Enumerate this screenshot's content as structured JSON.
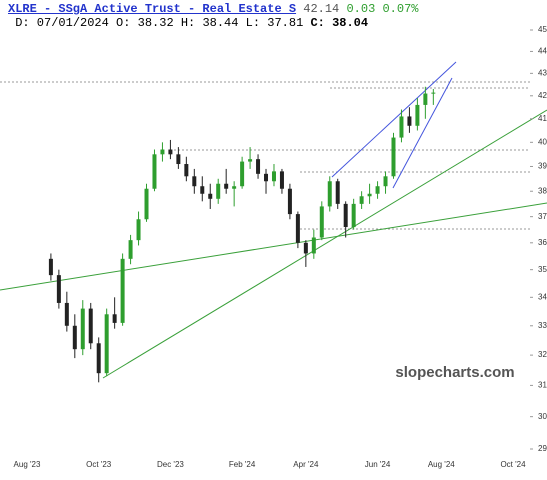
{
  "header": {
    "title": "XLRE - SSgA Active Trust - Real Estate S",
    "last": "42.14",
    "change": "0.03",
    "change_pct": "0.07%",
    "date": "D: 07/01/2024",
    "open": "O: 38.32",
    "high": "H: 38.44",
    "low": "L: 37.81",
    "close": "C: 38.04"
  },
  "watermark": "slopecharts.com",
  "chart_data": {
    "type": "candlestick",
    "yscale": "log",
    "up_color": "#2e9e2e",
    "down_color": "#222222",
    "categories": [
      "Aug '23",
      null,
      null,
      null,
      null,
      null,
      null,
      null,
      null,
      "Oct '23",
      null,
      null,
      null,
      null,
      null,
      null,
      null,
      null,
      "Dec '23",
      null,
      null,
      null,
      null,
      null,
      null,
      null,
      null,
      "Feb '24",
      null,
      null,
      null,
      null,
      null,
      null,
      null,
      "Apr '24",
      null,
      null,
      null,
      null,
      null,
      null,
      null,
      null,
      "Jun '24",
      null,
      null,
      null,
      null,
      null,
      null,
      null,
      "Aug '24",
      null,
      null,
      null,
      null,
      null,
      null,
      null,
      null,
      "Oct '24",
      null,
      null,
      null,
      null
    ],
    "open": [
      null,
      null,
      null,
      35.4,
      34.8,
      33.8,
      33.0,
      32.2,
      33.6,
      32.4,
      31.4,
      33.4,
      33.1,
      35.4,
      36.1,
      36.9,
      38.1,
      39.5,
      39.7,
      39.5,
      39.1,
      38.6,
      38.2,
      37.9,
      37.7,
      38.3,
      38.1,
      38.2,
      39.2,
      39.3,
      38.7,
      38.4,
      38.8,
      38.1,
      37.1,
      36.0,
      35.6,
      36.2,
      37.4,
      38.4,
      37.5,
      36.6,
      37.5,
      37.8,
      37.9,
      38.2,
      38.6,
      40.2,
      41.1,
      40.7,
      41.6,
      42.1,
      null,
      null,
      null,
      null,
      null,
      null,
      null,
      null,
      null,
      null,
      null,
      null,
      null,
      null
    ],
    "high": [
      null,
      null,
      null,
      35.6,
      35.0,
      34.2,
      33.4,
      33.9,
      33.8,
      32.6,
      33.6,
      34.0,
      35.6,
      36.3,
      37.2,
      38.3,
      39.7,
      40.0,
      40.1,
      39.8,
      39.4,
      38.9,
      38.6,
      38.3,
      38.5,
      38.9,
      38.4,
      39.4,
      39.8,
      39.5,
      38.9,
      39.1,
      38.9,
      38.3,
      37.2,
      36.1,
      36.5,
      37.6,
      38.6,
      38.5,
      37.6,
      37.7,
      38.0,
      38.3,
      38.4,
      38.8,
      40.4,
      41.4,
      41.5,
      41.9,
      42.4,
      42.3,
      null,
      null,
      null,
      null,
      null,
      null,
      null,
      null,
      null,
      null,
      null,
      null,
      null,
      null
    ],
    "low": [
      null,
      null,
      null,
      34.6,
      33.6,
      32.8,
      31.9,
      32.0,
      32.2,
      31.1,
      31.3,
      32.9,
      33.0,
      35.2,
      35.9,
      36.8,
      38.0,
      39.2,
      39.3,
      38.9,
      38.4,
      37.9,
      37.6,
      37.3,
      37.5,
      37.9,
      37.4,
      38.1,
      38.9,
      38.5,
      37.9,
      38.2,
      37.9,
      36.9,
      35.8,
      35.1,
      35.4,
      36.1,
      37.2,
      37.3,
      36.2,
      36.5,
      37.3,
      37.5,
      37.7,
      37.9,
      38.5,
      40.0,
      40.4,
      40.5,
      41.0,
      41.6,
      null,
      null,
      null,
      null,
      null,
      null,
      null,
      null,
      null,
      null,
      null,
      null,
      null,
      null
    ],
    "close": [
      null,
      null,
      null,
      34.8,
      33.8,
      33.0,
      32.2,
      33.6,
      32.4,
      31.4,
      33.4,
      33.1,
      35.4,
      36.1,
      36.9,
      38.1,
      39.5,
      39.7,
      39.5,
      39.1,
      38.6,
      38.2,
      37.9,
      37.7,
      38.3,
      38.1,
      38.2,
      39.2,
      39.3,
      38.7,
      38.4,
      38.8,
      38.1,
      37.1,
      36.0,
      35.6,
      36.2,
      37.4,
      38.4,
      37.5,
      36.6,
      37.5,
      37.8,
      37.9,
      38.2,
      38.6,
      40.2,
      41.1,
      40.7,
      41.6,
      42.1,
      42.14,
      null,
      null,
      null,
      null,
      null,
      null,
      null,
      null,
      null,
      null,
      null,
      null,
      null,
      null
    ],
    "ylim": [
      29,
      45
    ],
    "yticks": [
      29,
      30,
      31,
      32,
      33,
      34,
      35,
      36,
      37,
      38,
      39,
      40,
      41,
      42,
      43,
      44,
      45
    ]
  }
}
